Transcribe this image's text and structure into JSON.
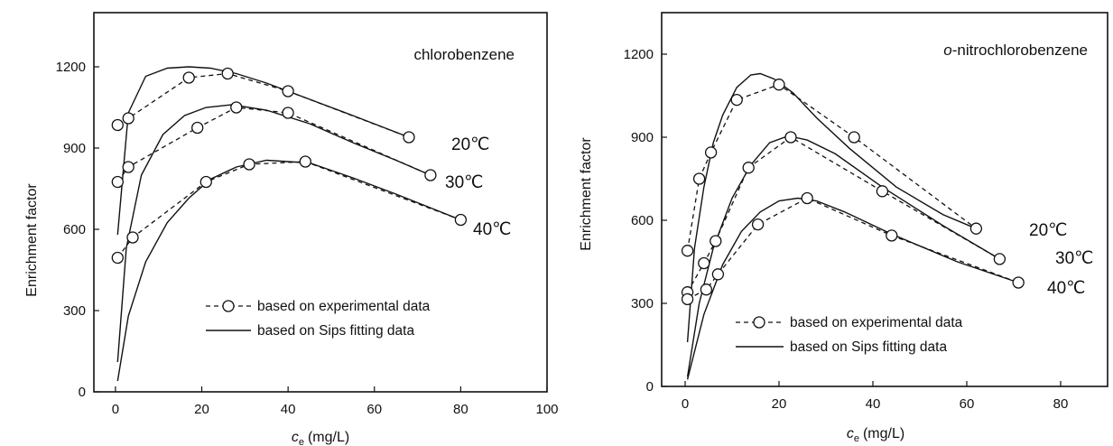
{
  "chart_data": [
    {
      "type": "line",
      "title": "chlorobenzene",
      "xlabel": "c (mg/L)",
      "xlabel_main": "c",
      "xlabel_sub": "e",
      "xlabel_unit": "(mg/L)",
      "ylabel": "Enrichment factor",
      "xlim": [
        -5,
        100
      ],
      "ylim": [
        0,
        1400
      ],
      "xticks": [
        0,
        20,
        40,
        60,
        80,
        100
      ],
      "yticks": [
        0,
        300,
        600,
        900,
        1200
      ],
      "grid": false,
      "legend_placement": "bottom-right",
      "legend": [
        {
          "label": "based on experimental data",
          "style": "dashed-with-circle"
        },
        {
          "label": "based on Sips fitting data",
          "style": "solid"
        }
      ],
      "series": [
        {
          "name": "20℃",
          "experimental": {
            "x": [
              0.5,
              3,
              17,
              26,
              40,
              68
            ],
            "y": [
              985,
              1010,
              1160,
              1175,
              1110,
              940
            ]
          },
          "fit": {
            "x": [
              0.5,
              3,
              7,
              12,
              17,
              22,
              28,
              35,
              45,
              55,
              68
            ],
            "y": [
              580,
              1030,
              1165,
              1195,
              1200,
              1195,
              1175,
              1140,
              1080,
              1020,
              940
            ]
          }
        },
        {
          "name": "30℃",
          "experimental": {
            "x": [
              0.5,
              3,
              19,
              28,
              40,
              73
            ],
            "y": [
              775,
              830,
              975,
              1050,
              1030,
              800
            ]
          },
          "fit": {
            "x": [
              0.5,
              2.5,
              6,
              11,
              16,
              21,
              27,
              35,
              45,
              55,
              65,
              73
            ],
            "y": [
              110,
              530,
              800,
              950,
              1020,
              1050,
              1060,
              1040,
              990,
              920,
              855,
              800
            ]
          }
        },
        {
          "name": "40℃",
          "experimental": {
            "x": [
              0.5,
              4,
              21,
              31,
              44,
              80
            ],
            "y": [
              495,
              570,
              775,
              840,
              850,
              635
            ]
          },
          "fit": {
            "x": [
              0.5,
              3,
              7,
              12,
              17,
              22,
              28,
              35,
              45,
              55,
              65,
              80
            ],
            "y": [
              40,
              280,
              480,
              625,
              715,
              785,
              830,
              855,
              845,
              790,
              730,
              635
            ]
          }
        }
      ]
    },
    {
      "type": "line",
      "title": "o-nitrochlorobenzene",
      "title_prefix": "o",
      "title_rest": "-nitrochlorobenzene",
      "xlabel": "c (mg/L)",
      "xlabel_main": "c",
      "xlabel_sub": "e",
      "xlabel_unit": "(mg/L)",
      "ylabel": "Enrichment factor",
      "xlim": [
        -5,
        90
      ],
      "ylim": [
        0,
        1350
      ],
      "xticks": [
        0,
        20,
        40,
        60,
        80
      ],
      "yticks": [
        0,
        300,
        600,
        900,
        1200
      ],
      "grid": false,
      "legend_placement": "bottom-center",
      "legend": [
        {
          "label": "based on experimental data",
          "style": "dashed-with-circle"
        },
        {
          "label": "based on Sips fitting data",
          "style": "solid"
        }
      ],
      "series": [
        {
          "name": "20℃",
          "experimental": {
            "x": [
              0.5,
              3,
              5.5,
              11,
              20,
              36,
              62
            ],
            "y": [
              490,
              750,
              845,
              1035,
              1090,
              900,
              570
            ]
          },
          "fit": {
            "x": [
              0.5,
              2,
              4,
              6,
              8,
              11,
              14,
              16,
              19,
              23,
              28,
              35,
              45,
              55,
              62
            ],
            "y": [
              160,
              500,
              720,
              880,
              980,
              1080,
              1125,
              1130,
              1110,
              1060,
              970,
              860,
              720,
              620,
              570
            ]
          }
        },
        {
          "name": "30℃",
          "experimental": {
            "x": [
              0.5,
              4,
              6.5,
              13.5,
              22.5,
              42,
              67
            ],
            "y": [
              340,
              445,
              525,
              790,
              900,
              705,
              460
            ]
          },
          "fit": {
            "x": [
              0.5,
              3,
              6,
              10,
              14,
              18,
              22,
              26,
              32,
              42,
              55,
              67
            ],
            "y": [
              35,
              300,
              500,
              680,
              800,
              880,
              905,
              890,
              840,
              720,
              580,
              460
            ]
          }
        },
        {
          "name": "40℃",
          "experimental": {
            "x": [
              0.5,
              4.5,
              7,
              15.5,
              26,
              44,
              71
            ],
            "y": [
              315,
              350,
              405,
              585,
              680,
              545,
              375
            ]
          },
          "fit": {
            "x": [
              0.5,
              4,
              8,
              12,
              16,
              20,
              24,
              28,
              34,
              44,
              58,
              71
            ],
            "y": [
              25,
              260,
              440,
              560,
              630,
              670,
              680,
              670,
              630,
              550,
              450,
              375
            ]
          }
        }
      ]
    }
  ]
}
